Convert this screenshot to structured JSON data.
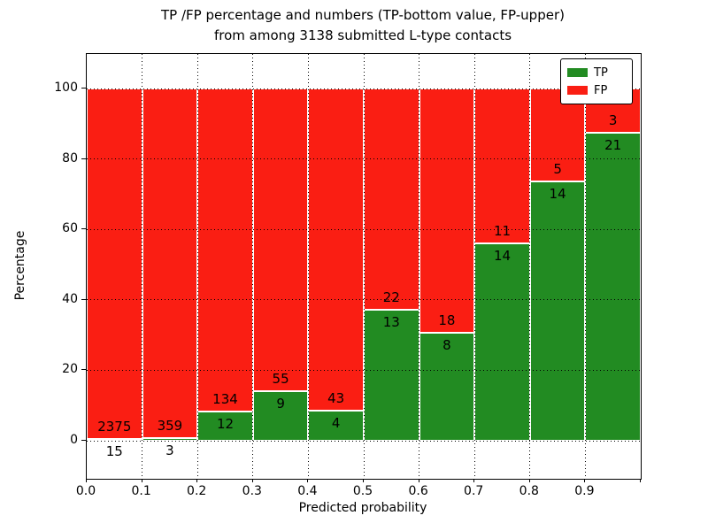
{
  "figure": {
    "title_line1": "TP /FP percentage and numbers (TP-bottom value, FP-upper)",
    "title_line2": "from among 3138 submitted L-type contacts",
    "xlabel": "Predicted probability",
    "ylabel": "Percentage"
  },
  "legend": {
    "items": [
      {
        "label": "TP",
        "color": "#228b22"
      },
      {
        "label": "FP",
        "color": "#fa1e13"
      }
    ]
  },
  "chart_data": {
    "type": "bar",
    "stacked": true,
    "title": "TP /FP percentage and numbers (TP-bottom value, FP-upper)\nfrom among 3138 submitted L-type contacts",
    "xlabel": "Predicted probability",
    "ylabel": "Percentage",
    "total_contacts": 3138,
    "bins": [
      "0.0-0.1",
      "0.1-0.2",
      "0.2-0.3",
      "0.3-0.4",
      "0.4-0.5",
      "0.5-0.6",
      "0.6-0.7",
      "0.7-0.8",
      "0.8-0.9",
      "0.9-1.0"
    ],
    "series": [
      {
        "name": "TP",
        "color": "#228b22",
        "counts": [
          15,
          3,
          12,
          9,
          4,
          13,
          8,
          14,
          14,
          21
        ]
      },
      {
        "name": "FP",
        "color": "#fa1e13",
        "counts": [
          2375,
          359,
          134,
          55,
          43,
          22,
          18,
          11,
          5,
          3
        ]
      }
    ],
    "value_rule": "bar heights are percentages stacked to 100: TP% = TP/(TP+FP)*100",
    "xticks": [
      "0.0",
      "0.1",
      "0.2",
      "0.3",
      "0.4",
      "0.5",
      "0.6",
      "0.7",
      "0.8",
      "0.9"
    ],
    "yticks": [
      0,
      20,
      40,
      60,
      80,
      100
    ],
    "xlim": [
      0,
      1
    ],
    "ylim": [
      -10.8,
      109.8
    ],
    "grid": true,
    "legend_position": "upper right"
  }
}
